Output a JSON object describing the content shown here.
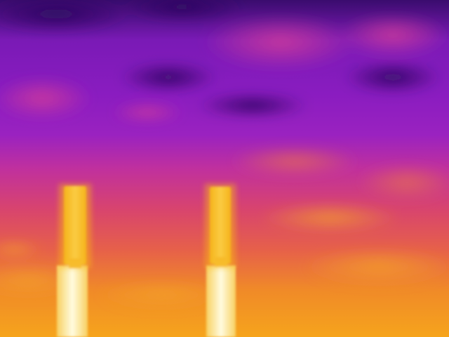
{
  "image": {
    "kind": "thermal-infrared photograph",
    "palette": "ironbow",
    "palette_colors": {
      "cold": "#2a0a5e",
      "cool": "#6a16b8",
      "mid_cool": "#a020c8",
      "mid": "#d23c9a",
      "warm": "#e85a5a",
      "hot": "#f2902a",
      "hotter": "#f8b818",
      "hottest": "#fff8c8"
    },
    "subjects": [
      "cloudy-sky",
      "left-chimney-stack",
      "right-chimney-stack"
    ],
    "visible_text": ""
  }
}
